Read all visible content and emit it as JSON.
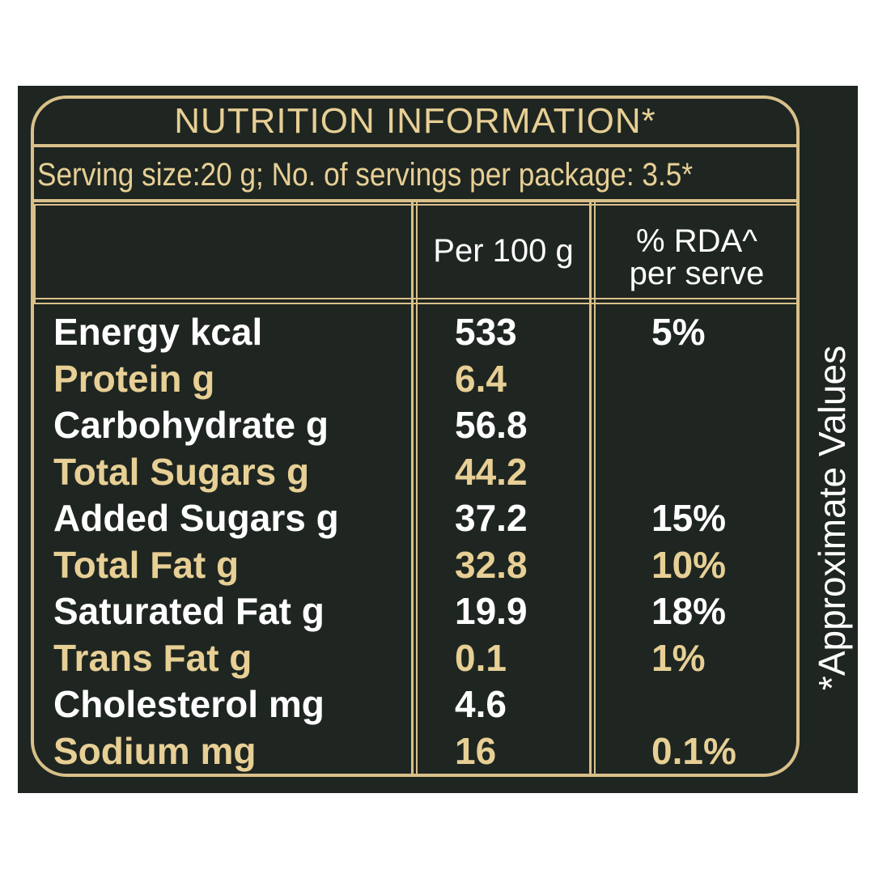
{
  "panel": {
    "background": "#1f2621",
    "border_color": "#d9c08a",
    "text_white": "#ffffff",
    "text_gold": "#e7cf95"
  },
  "header": {
    "title": "NUTRITION INFORMATION*",
    "serving_line": "Serving size:20 g; No. of servings per package: 3.5*"
  },
  "columns": {
    "per_100g": "Per 100 g",
    "rda_line1": "% RDA^",
    "rda_line2": "per serve"
  },
  "rows": [
    {
      "name": "Energy kcal",
      "per_100g": "533",
      "rda": "5%",
      "color": "white"
    },
    {
      "name": "Protein g",
      "per_100g": "6.4",
      "rda": "",
      "color": "gold"
    },
    {
      "name": "Carbohydrate g",
      "per_100g": "56.8",
      "rda": "",
      "color": "white"
    },
    {
      "name": "Total Sugars g",
      "per_100g": "44.2",
      "rda": "",
      "color": "gold"
    },
    {
      "name": "Added Sugars g",
      "per_100g": "37.2",
      "rda": "15%",
      "color": "white"
    },
    {
      "name": "Total Fat g",
      "per_100g": "32.8",
      "rda": "10%",
      "color": "gold"
    },
    {
      "name": "Saturated Fat g",
      "per_100g": "19.9",
      "rda": "18%",
      "color": "white"
    },
    {
      "name": "Trans Fat g",
      "per_100g": "0.1",
      "rda": "1%",
      "color": "gold"
    },
    {
      "name": "Cholesterol mg",
      "per_100g": "4.6",
      "rda": "",
      "color": "white"
    },
    {
      "name": "Sodium mg",
      "per_100g": "16",
      "rda": "0.1%",
      "color": "gold"
    }
  ],
  "side_note": "*Approximate Values"
}
